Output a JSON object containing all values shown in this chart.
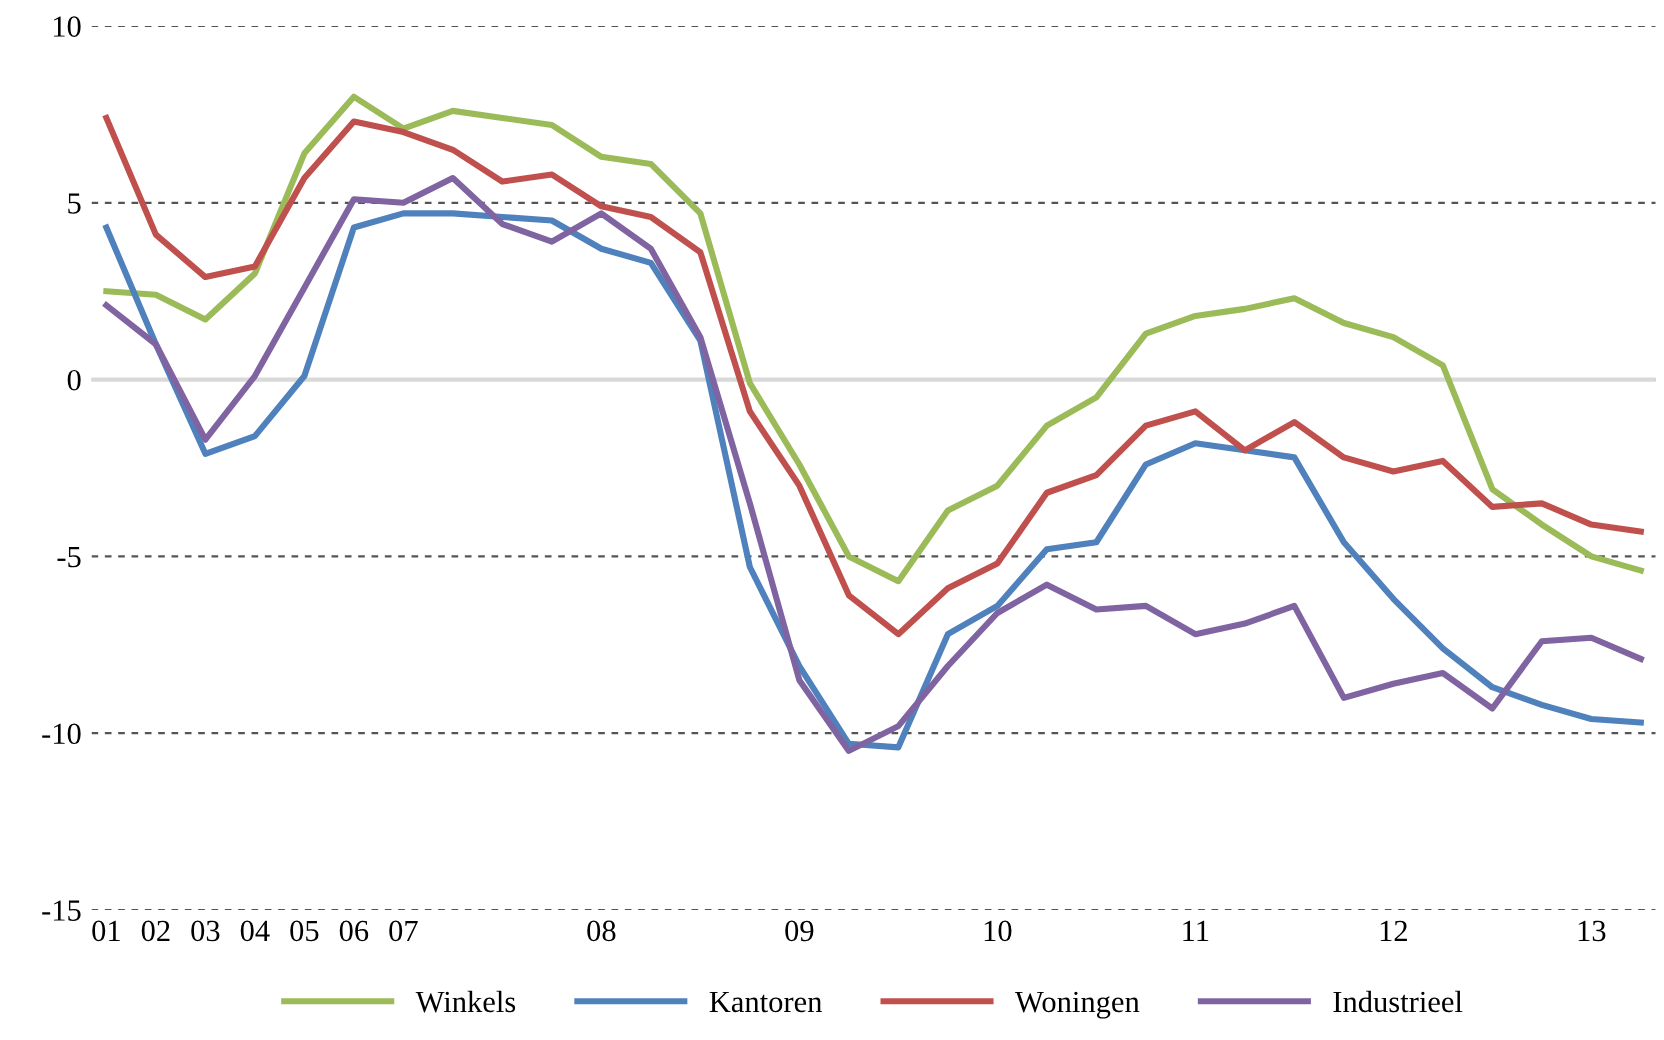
{
  "chart_data": {
    "type": "line",
    "categories": [
      "01",
      "02",
      "03",
      "04",
      "05",
      "06",
      "07",
      null,
      null,
      null,
      "08",
      null,
      null,
      null,
      "09",
      null,
      null,
      null,
      "10",
      null,
      null,
      null,
      "11",
      null,
      null,
      null,
      "12",
      null,
      null,
      null,
      "13",
      null
    ],
    "series": [
      {
        "name": "Winkels",
        "color": "#9bbb59",
        "values": [
          2.5,
          2.4,
          1.7,
          3.0,
          6.4,
          8.0,
          7.1,
          7.6,
          7.4,
          7.2,
          6.3,
          6.1,
          4.7,
          -0.1,
          -2.4,
          -5.0,
          -5.7,
          -3.7,
          -3.0,
          -1.3,
          -0.5,
          1.3,
          1.8,
          2.0,
          2.3,
          1.6,
          1.2,
          0.4,
          -3.1,
          -4.1,
          -5.0,
          -5.4
        ]
      },
      {
        "name": "Kantoren",
        "color": "#4f81bd",
        "values": [
          4.3,
          1.0,
          -2.1,
          -1.6,
          0.1,
          4.3,
          4.7,
          4.7,
          4.6,
          4.5,
          3.7,
          3.3,
          1.1,
          -5.3,
          -8.1,
          -10.3,
          -10.4,
          -7.2,
          -6.4,
          -4.8,
          -4.6,
          -2.4,
          -1.8,
          -2.0,
          -2.2,
          -4.6,
          -6.2,
          -7.6,
          -8.7,
          -9.2,
          -9.6,
          -9.7
        ]
      },
      {
        "name": "Woningen",
        "color": "#c0504d",
        "values": [
          7.4,
          4.1,
          2.9,
          3.2,
          5.7,
          7.3,
          7.0,
          6.5,
          5.6,
          5.8,
          4.9,
          4.6,
          3.6,
          -0.9,
          -3.0,
          -6.1,
          -7.2,
          -5.9,
          -5.2,
          -3.2,
          -2.7,
          -1.3,
          -0.9,
          -2.0,
          -1.2,
          -2.2,
          -2.6,
          -2.3,
          -3.6,
          -3.5,
          -4.1,
          -4.3
        ]
      },
      {
        "name": "Industrieel",
        "color": "#8064a2",
        "values": [
          2.1,
          1.0,
          -1.7,
          0.1,
          2.6,
          5.1,
          5.0,
          5.7,
          4.4,
          3.9,
          4.7,
          3.7,
          1.2,
          -3.5,
          -8.5,
          -10.5,
          -9.8,
          -8.1,
          -6.6,
          -5.8,
          -6.5,
          -6.4,
          -7.2,
          -6.9,
          -6.4,
          -9.0,
          -8.6,
          -8.3,
          -9.3,
          -7.4,
          -7.3,
          -7.9
        ]
      }
    ],
    "ylim": [
      -15,
      10
    ],
    "yticks": [
      -15,
      -10,
      -5,
      0,
      5,
      10
    ],
    "grid": "y",
    "legend": "bottom",
    "marker": "none",
    "line_style": "solid",
    "ref_lines": [
      {
        "axis": "y",
        "value": 0,
        "label": null,
        "color": "#d9d9d9",
        "line_style": "solid"
      }
    ]
  }
}
